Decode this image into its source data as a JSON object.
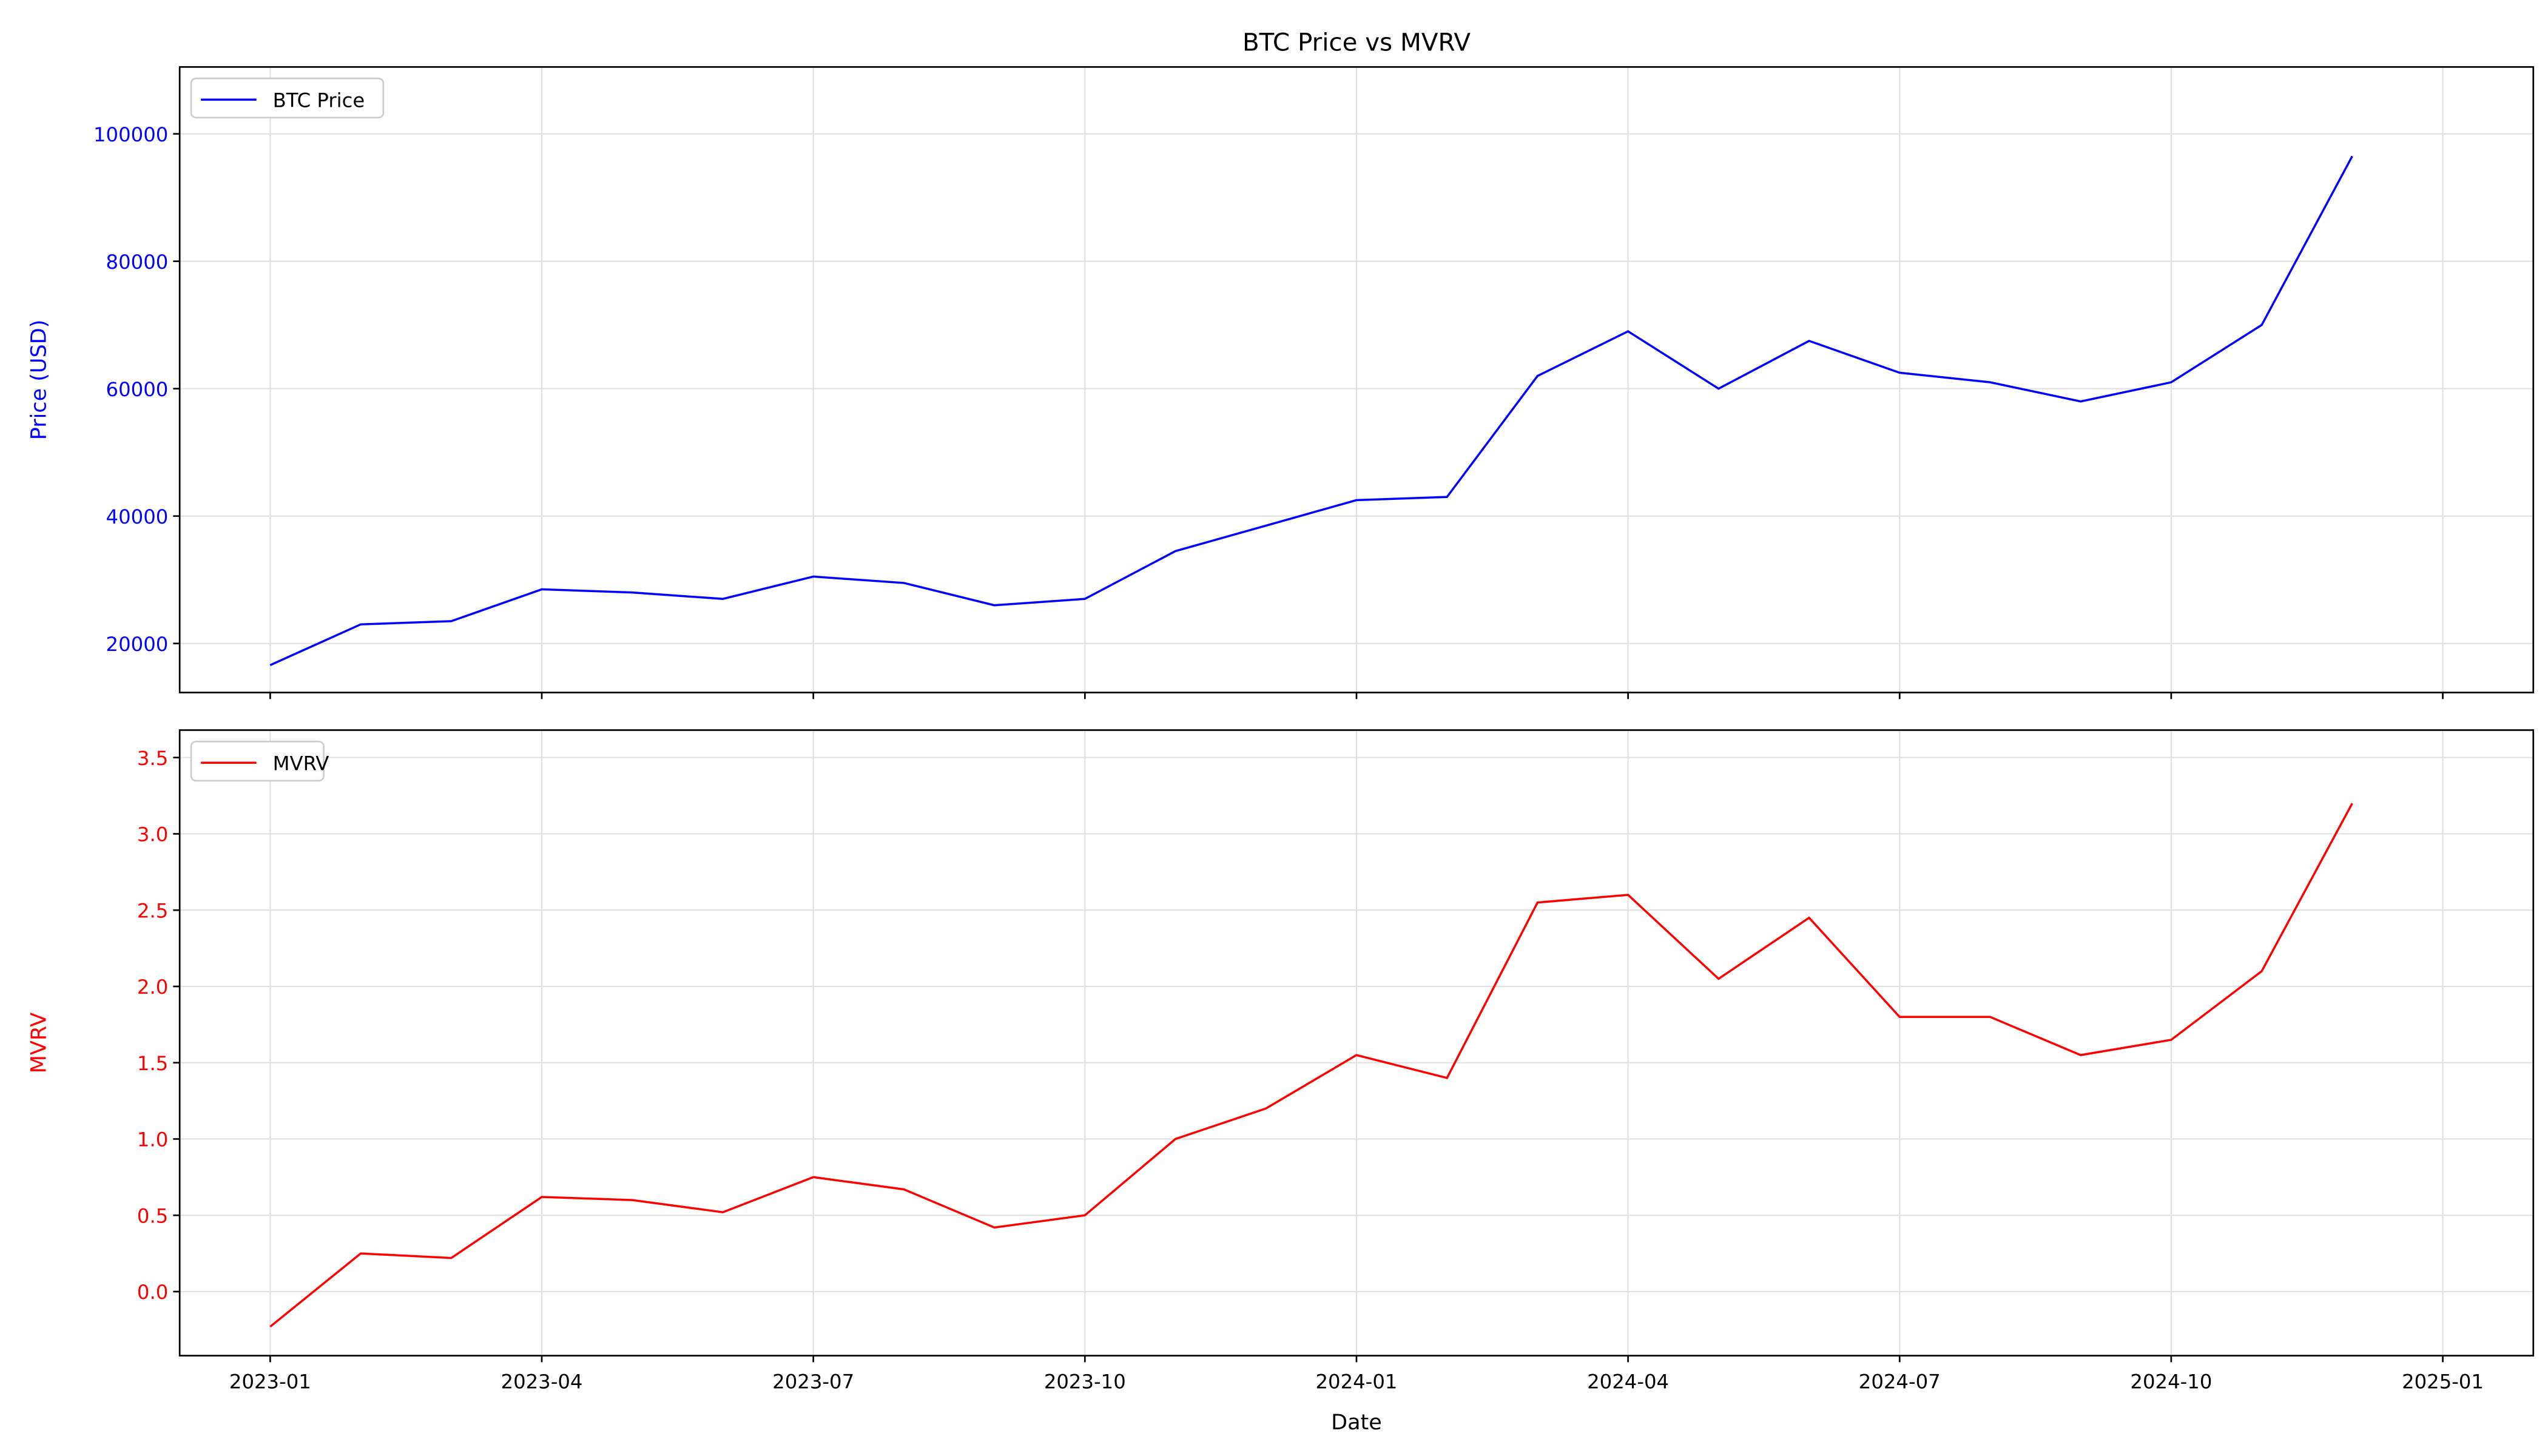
{
  "chart_data": [
    {
      "type": "line",
      "title": "BTC Price vs MVRV",
      "ylabel": "Price (USD)",
      "x": [
        "2023-01",
        "2023-02",
        "2023-03",
        "2023-04",
        "2023-05",
        "2023-06",
        "2023-07",
        "2023-08",
        "2023-09",
        "2023-10",
        "2023-11",
        "2023-12",
        "2024-01",
        "2024-02",
        "2024-03",
        "2024-04",
        "2024-05",
        "2024-06",
        "2024-07",
        "2024-08",
        "2024-09",
        "2024-10",
        "2024-11",
        "2024-12"
      ],
      "series": [
        {
          "name": "BTC Price",
          "color": "#0000ff",
          "values": [
            16600,
            23000,
            23500,
            28500,
            28000,
            27000,
            30500,
            29500,
            26000,
            27000,
            34500,
            38500,
            42500,
            43000,
            62000,
            69000,
            60000,
            67500,
            62500,
            61000,
            58000,
            61000,
            70000,
            96500
          ]
        }
      ],
      "xlim": [
        "2022-12",
        "2025-02"
      ],
      "ylim": [
        12300,
        110500
      ],
      "xticks": [
        "2023-01",
        "2023-04",
        "2023-07",
        "2023-10",
        "2024-01",
        "2024-04",
        "2024-07",
        "2024-10",
        "2025-01"
      ],
      "show_xticklabels": false,
      "yticks": [
        20000,
        40000,
        60000,
        80000,
        100000
      ],
      "grid": true,
      "legend": "upper left"
    },
    {
      "type": "line",
      "ylabel": "MVRV",
      "xlabel": "Date",
      "x": [
        "2023-01",
        "2023-02",
        "2023-03",
        "2023-04",
        "2023-05",
        "2023-06",
        "2023-07",
        "2023-08",
        "2023-09",
        "2023-10",
        "2023-11",
        "2023-12",
        "2024-01",
        "2024-02",
        "2024-03",
        "2024-04",
        "2024-05",
        "2024-06",
        "2024-07",
        "2024-08",
        "2024-09",
        "2024-10",
        "2024-11",
        "2024-12"
      ],
      "series": [
        {
          "name": "MVRV",
          "color": "#ff0000",
          "values": [
            -0.23,
            0.25,
            0.22,
            0.62,
            0.6,
            0.52,
            0.75,
            0.67,
            0.42,
            0.5,
            1.0,
            1.2,
            1.55,
            1.4,
            2.55,
            2.6,
            2.05,
            2.45,
            1.8,
            1.8,
            1.55,
            1.65,
            2.1,
            3.2
          ]
        }
      ],
      "xlim": [
        "2022-12",
        "2025-02"
      ],
      "ylim": [
        -0.42,
        3.68
      ],
      "xticks": [
        "2023-01",
        "2023-04",
        "2023-07",
        "2023-10",
        "2024-01",
        "2024-04",
        "2024-07",
        "2024-10",
        "2025-01"
      ],
      "show_xticklabels": true,
      "yticks": [
        {
          "value": 0,
          "label": "0.0"
        },
        0.5,
        {
          "value": 1,
          "label": "1.0"
        },
        1.5,
        {
          "value": 2,
          "label": "2.0"
        },
        2.5,
        {
          "value": 3,
          "label": "3.0"
        },
        3.5
      ],
      "grid": true,
      "legend": "upper left"
    }
  ]
}
